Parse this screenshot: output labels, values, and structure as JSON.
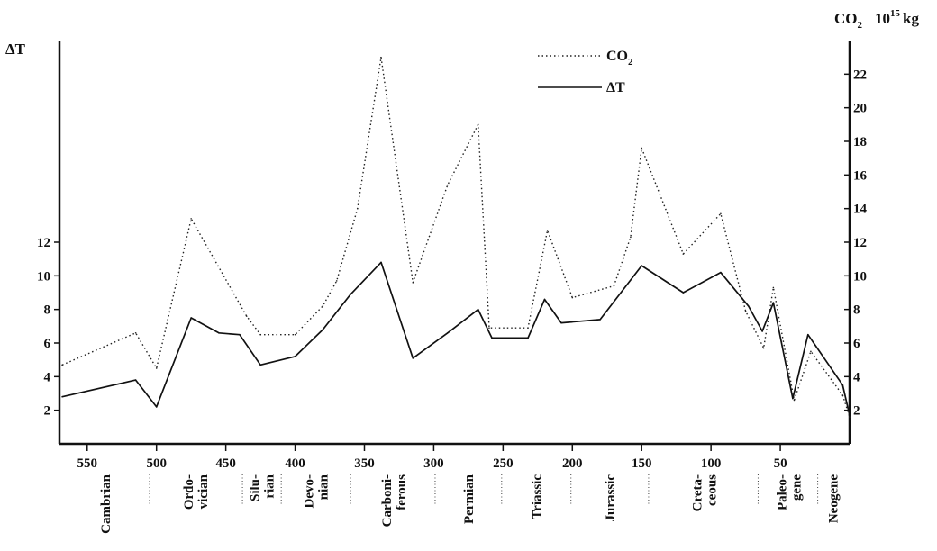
{
  "chart_data": {
    "type": "line",
    "left_axis_title": "ΔT",
    "right_axis_title": "CO₂ 10¹⁵ kg",
    "x_axis": {
      "reversed": true,
      "xlim": [
        570,
        0
      ],
      "ticks": [
        550,
        500,
        450,
        400,
        350,
        300,
        250,
        200,
        150,
        100,
        50
      ]
    },
    "left_axis": {
      "ylim": [
        0,
        24
      ],
      "ticks": [
        2,
        4,
        6,
        8,
        10,
        12
      ]
    },
    "right_axis": {
      "ylim": [
        0,
        24
      ],
      "ticks": [
        2,
        4,
        6,
        8,
        10,
        12,
        14,
        16,
        18,
        20,
        22
      ]
    },
    "legend": {
      "position": "top-center",
      "entries": [
        {
          "label": "CO₂",
          "style": "dotted"
        },
        {
          "label": "ΔT",
          "style": "solid"
        }
      ]
    },
    "series": [
      {
        "name": "CO₂",
        "axis": "right",
        "style": "dotted",
        "color": "#222222",
        "x": [
          568,
          515,
          500,
          475,
          435,
          425,
          400,
          380,
          370,
          355,
          338,
          315,
          290,
          268,
          260,
          232,
          218,
          200,
          170,
          158,
          150,
          120,
          93,
          75,
          62,
          55,
          40,
          28,
          5,
          0
        ],
        "y": [
          4.7,
          6.6,
          4.5,
          13.4,
          7.6,
          6.5,
          6.5,
          8.2,
          9.7,
          14.0,
          23.0,
          9.6,
          15.4,
          19.0,
          6.9,
          6.9,
          12.7,
          8.7,
          9.4,
          12.3,
          17.6,
          11.3,
          13.7,
          7.9,
          5.7,
          9.3,
          2.6,
          5.5,
          2.9,
          1.6
        ]
      },
      {
        "name": "ΔT",
        "axis": "left",
        "style": "solid",
        "color": "#111111",
        "x": [
          568,
          515,
          500,
          475,
          455,
          440,
          425,
          400,
          380,
          360,
          338,
          315,
          290,
          268,
          258,
          232,
          220,
          208,
          180,
          150,
          120,
          93,
          73,
          63,
          55,
          41,
          30,
          5,
          0
        ],
        "y": [
          2.8,
          3.8,
          2.2,
          7.5,
          6.6,
          6.5,
          4.7,
          5.2,
          6.8,
          8.9,
          10.8,
          5.1,
          6.6,
          8.0,
          6.3,
          6.3,
          8.6,
          7.2,
          7.4,
          10.6,
          9.0,
          10.2,
          8.2,
          6.7,
          8.4,
          2.7,
          6.5,
          3.5,
          1.7
        ]
      }
    ],
    "period_boundaries": [
      505,
      438,
      410,
      360,
      299,
      251,
      201,
      145,
      66,
      23
    ],
    "periods": [
      {
        "label": "Cambrian",
        "lines": [
          "Cambrian"
        ],
        "x": 537
      },
      {
        "label": "Ordovician",
        "lines": [
          "Ordo-",
          "vician"
        ],
        "x": 472
      },
      {
        "label": "Silurian",
        "lines": [
          "Silu-",
          "rian"
        ],
        "x": 424
      },
      {
        "label": "Devonian",
        "lines": [
          "Devo-",
          "nian"
        ],
        "x": 385
      },
      {
        "label": "Carboniferous",
        "lines": [
          "Carboni-",
          "ferous"
        ],
        "x": 329
      },
      {
        "label": "Permian",
        "lines": [
          "Permian"
        ],
        "x": 275
      },
      {
        "label": "Triassic",
        "lines": [
          "Triassic"
        ],
        "x": 226
      },
      {
        "label": "Jurassic",
        "lines": [
          "Jurassic"
        ],
        "x": 173
      },
      {
        "label": "Cretaceous",
        "lines": [
          "Creta-",
          "ceous"
        ],
        "x": 105
      },
      {
        "label": "Paleogene",
        "lines": [
          "Paleo-",
          "gene"
        ],
        "x": 44
      },
      {
        "label": "Neogene",
        "lines": [
          "Neogene"
        ],
        "x": 12
      }
    ]
  }
}
